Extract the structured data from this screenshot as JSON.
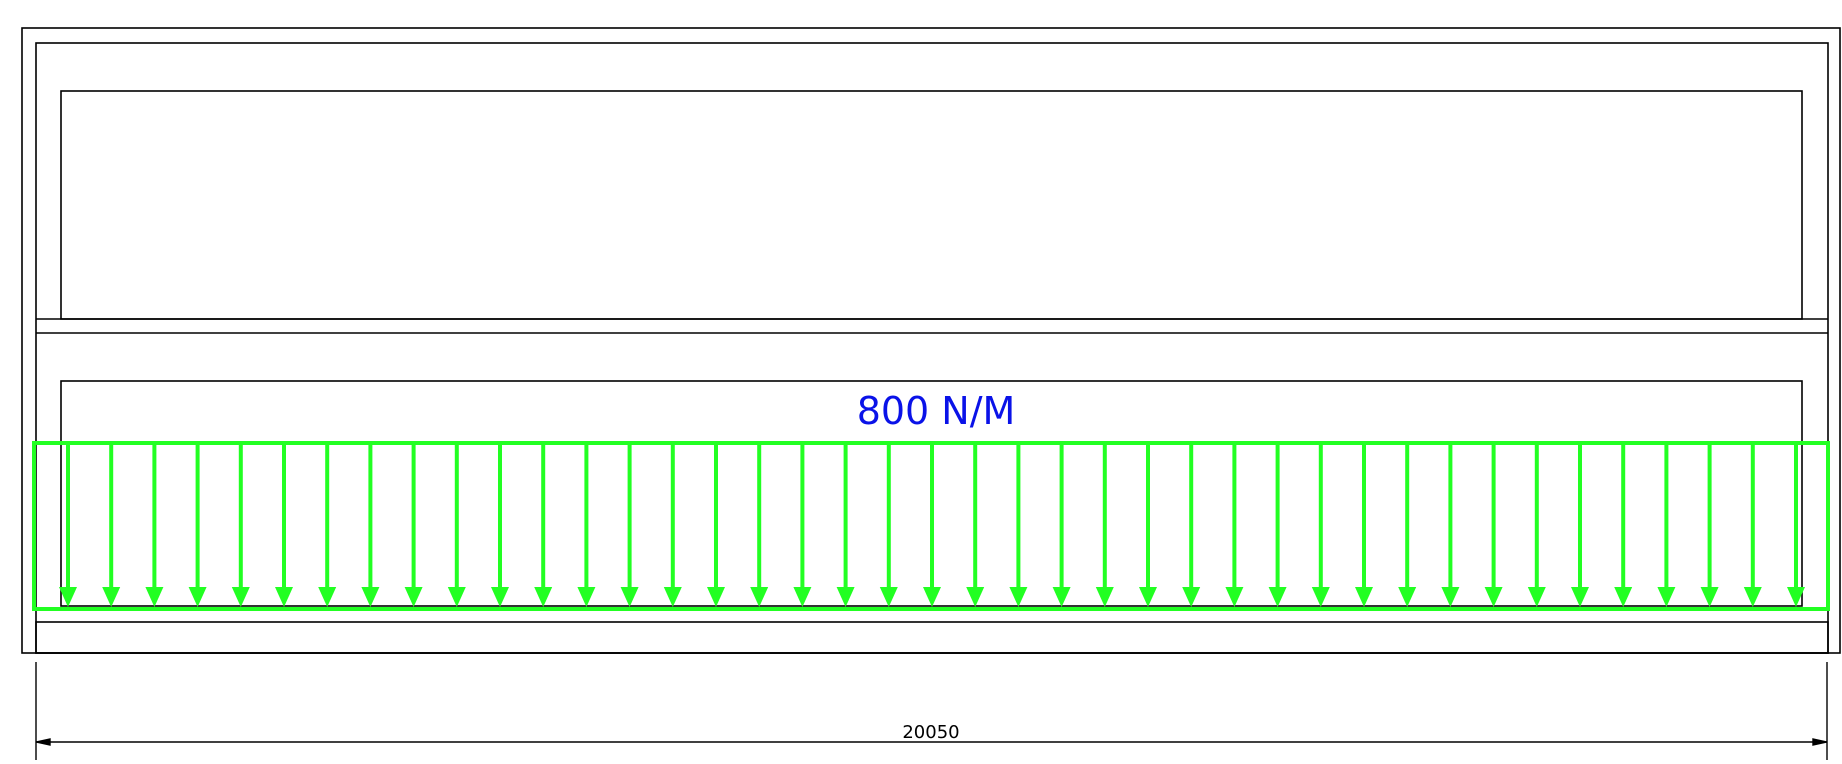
{
  "load": {
    "label": "800 N/M",
    "label_color": "#0a12e8",
    "color": "#22ff22",
    "arrow_count": 41
  },
  "dimension": {
    "label": "20050"
  },
  "colors": {
    "outline": "#000000",
    "background": "#ffffff"
  }
}
